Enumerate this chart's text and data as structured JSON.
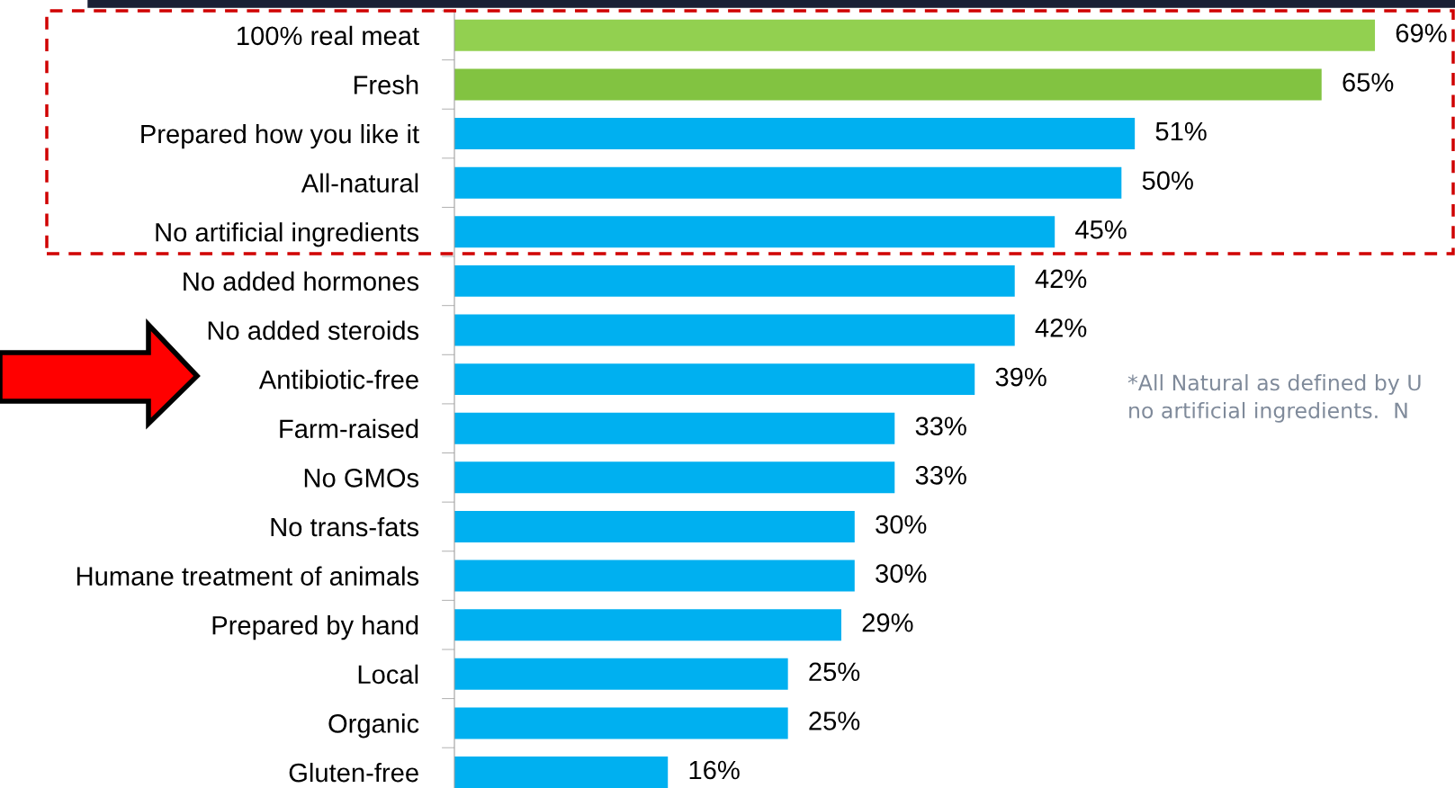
{
  "chart_data": {
    "type": "bar",
    "orientation": "horizontal",
    "categories": [
      "100% real meat",
      "Fresh",
      "Prepared how you like it",
      "All-natural",
      "No artificial ingredients",
      "No added hormones",
      "No added steroids",
      "Antibiotic-free",
      "Farm-raised",
      "No GMOs",
      "No trans-fats",
      "Humane treatment of animals",
      "Prepared by hand",
      "Local",
      "Organic",
      "Gluten-free"
    ],
    "values": [
      69,
      65,
      51,
      50,
      45,
      42,
      42,
      39,
      33,
      33,
      30,
      30,
      29,
      25,
      25,
      16
    ],
    "colors": [
      "#92d050",
      "#82c341",
      "#00b0f0",
      "#00b0f0",
      "#00b0f0",
      "#00b0f0",
      "#00b0f0",
      "#00b0f0",
      "#00b0f0",
      "#00b0f0",
      "#00b0f0",
      "#00b0f0",
      "#00b0f0",
      "#00b0f0",
      "#00b0f0",
      "#00b0f0"
    ],
    "value_labels": [
      "69%",
      "65%",
      "51%",
      "50%",
      "45%",
      "42%",
      "42%",
      "39%",
      "33%",
      "33%",
      "30%",
      "30%",
      "29%",
      "25%",
      "25%",
      "16%"
    ],
    "tick_labels": "y",
    "grid": false,
    "legend": false,
    "annotations": [
      "*All Natural as defined by U\nno artificial ingredients.  N"
    ]
  }
}
